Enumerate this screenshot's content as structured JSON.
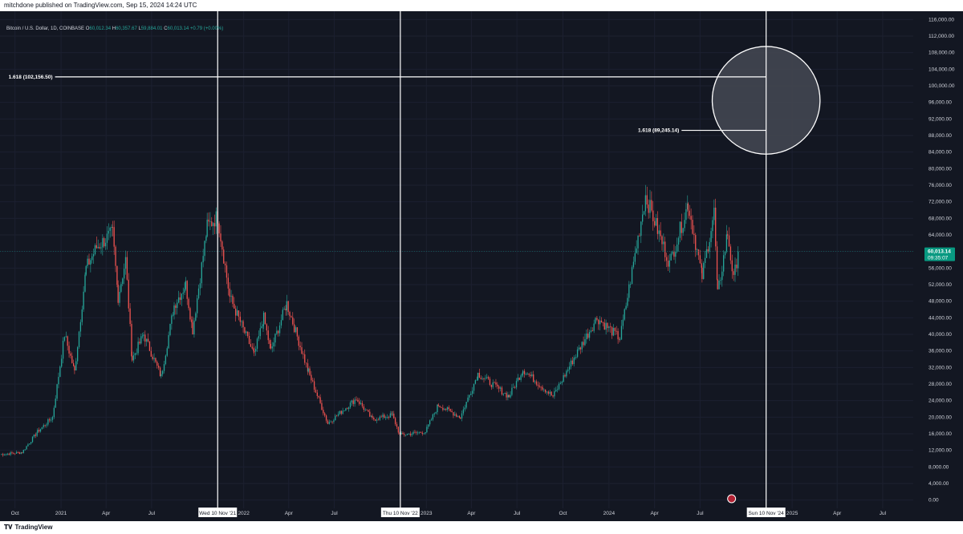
{
  "header": {
    "publisher": "mitchdone published on TradingView.com, Sep 15, 2024 14:24 UTC"
  },
  "legend": {
    "symbol": "Bitcoin / U.S. Dollar, 1D, COINBASE",
    "o_label": "O",
    "o_value": "60,012.34",
    "h_label": "H",
    "h_value": "60,357.67",
    "l_label": "L",
    "l_value": "59,884.01",
    "c_label": "C",
    "c_value": "60,013.14",
    "change": "+0.79 (+0.00%)"
  },
  "footer": {
    "logo": "TradingView"
  },
  "colors": {
    "background": "#131722",
    "up": "#26a69a",
    "down": "#ef5350",
    "line": "#ffffff",
    "circle_fill": "#434651",
    "price_tag": "#089981"
  },
  "chart_data": {
    "type": "candlestick",
    "ylim": [
      -2000,
      118000
    ],
    "y_ticks": [
      0,
      4000,
      8000,
      12000,
      16000,
      20000,
      24000,
      28000,
      32000,
      36000,
      40000,
      44000,
      48000,
      52000,
      56000,
      60000,
      64000,
      68000,
      72000,
      76000,
      80000,
      84000,
      88000,
      92000,
      96000,
      100000,
      104000,
      108000,
      112000,
      116000
    ],
    "y_tick_labels": [
      "0.00",
      "4,000.00",
      "8,000.00",
      "12,000.00",
      "16,000.00",
      "20,000.00",
      "24,000.00",
      "28,000.00",
      "32,000.00",
      "36,000.00",
      "40,000.00",
      "44,000.00",
      "48,000.00",
      "52,000.00",
      "56,000.00",
      "60,000.00",
      "64,000.00",
      "68,000.00",
      "72,000.00",
      "76,000.00",
      "80,000.00",
      "84,000.00",
      "88,000.00",
      "92,000.00",
      "96,000.00",
      "100,000.00",
      "104,000.00",
      "108,000.00",
      "112,000.00",
      "116,000.00"
    ],
    "xlim": [
      "2020-09-01",
      "2025-08-31"
    ],
    "x_ticks": [
      {
        "date": "2020-10-01",
        "label": "Oct"
      },
      {
        "date": "2021-01-01",
        "label": "2021"
      },
      {
        "date": "2021-04-01",
        "label": "Apr"
      },
      {
        "date": "2021-07-01",
        "label": "Jul"
      },
      {
        "date": "2022-01-01",
        "label": "2022"
      },
      {
        "date": "2022-04-01",
        "label": "Apr"
      },
      {
        "date": "2022-07-01",
        "label": "Jul"
      },
      {
        "date": "2023-01-01",
        "label": "2023"
      },
      {
        "date": "2023-04-01",
        "label": "Apr"
      },
      {
        "date": "2023-07-01",
        "label": "Jul"
      },
      {
        "date": "2023-10-01",
        "label": "Oct"
      },
      {
        "date": "2024-01-01",
        "label": "2024"
      },
      {
        "date": "2024-04-01",
        "label": "Apr"
      },
      {
        "date": "2024-07-01",
        "label": "Jul"
      },
      {
        "date": "2025-01-01",
        "label": "2025"
      },
      {
        "date": "2025-04-01",
        "label": "Apr"
      },
      {
        "date": "2025-07-01",
        "label": "Jul"
      }
    ],
    "series": [
      {
        "values": [
          {
            "date": "2020-09-01",
            "price": 11000
          },
          {
            "date": "2020-10-15",
            "price": 11500
          },
          {
            "date": "2020-11-15",
            "price": 16500
          },
          {
            "date": "2020-12-15",
            "price": 20000
          },
          {
            "date": "2021-01-08",
            "price": 40000
          },
          {
            "date": "2021-01-28",
            "price": 31000
          },
          {
            "date": "2021-02-20",
            "price": 56000
          },
          {
            "date": "2021-03-13",
            "price": 61000
          },
          {
            "date": "2021-04-14",
            "price": 64500
          },
          {
            "date": "2021-04-25",
            "price": 49000
          },
          {
            "date": "2021-05-10",
            "price": 58000
          },
          {
            "date": "2021-05-23",
            "price": 34000
          },
          {
            "date": "2021-06-15",
            "price": 40000
          },
          {
            "date": "2021-07-20",
            "price": 29800
          },
          {
            "date": "2021-08-15",
            "price": 47000
          },
          {
            "date": "2021-09-07",
            "price": 52000
          },
          {
            "date": "2021-09-21",
            "price": 41000
          },
          {
            "date": "2021-10-20",
            "price": 66000
          },
          {
            "date": "2021-11-10",
            "price": 68500
          },
          {
            "date": "2021-12-04",
            "price": 49000
          },
          {
            "date": "2022-01-22",
            "price": 35000
          },
          {
            "date": "2022-02-10",
            "price": 44000
          },
          {
            "date": "2022-02-24",
            "price": 36000
          },
          {
            "date": "2022-03-28",
            "price": 47500
          },
          {
            "date": "2022-05-10",
            "price": 31000
          },
          {
            "date": "2022-06-18",
            "price": 18500
          },
          {
            "date": "2022-08-14",
            "price": 24500
          },
          {
            "date": "2022-09-15",
            "price": 19500
          },
          {
            "date": "2022-10-25",
            "price": 20500
          },
          {
            "date": "2022-11-09",
            "price": 15700
          },
          {
            "date": "2022-12-30",
            "price": 16500
          },
          {
            "date": "2023-01-25",
            "price": 23000
          },
          {
            "date": "2023-03-10",
            "price": 20000
          },
          {
            "date": "2023-04-14",
            "price": 30500
          },
          {
            "date": "2023-06-15",
            "price": 25000
          },
          {
            "date": "2023-07-13",
            "price": 31500
          },
          {
            "date": "2023-09-11",
            "price": 25000
          },
          {
            "date": "2023-10-24",
            "price": 34500
          },
          {
            "date": "2023-12-08",
            "price": 44000
          },
          {
            "date": "2024-01-23",
            "price": 39000
          },
          {
            "date": "2024-03-14",
            "price": 73500
          },
          {
            "date": "2024-05-01",
            "price": 57000
          },
          {
            "date": "2024-06-07",
            "price": 71500
          },
          {
            "date": "2024-07-05",
            "price": 54000
          },
          {
            "date": "2024-07-29",
            "price": 69500
          },
          {
            "date": "2024-08-05",
            "price": 49500
          },
          {
            "date": "2024-08-25",
            "price": 64500
          },
          {
            "date": "2024-09-06",
            "price": 53000
          },
          {
            "date": "2024-09-15",
            "price": 60013
          }
        ]
      }
    ],
    "last_price": {
      "value": 60013.14,
      "label": "60,013.14",
      "countdown": "09:35:07"
    },
    "vertical_lines": [
      {
        "date": "2021-11-10",
        "label": "Wed 10 Nov '21"
      },
      {
        "date": "2022-11-10",
        "label": "Thu 10 Nov '22"
      },
      {
        "date": "2024-11-10",
        "label": "Sun 10 Nov '24"
      }
    ],
    "fib_levels": [
      {
        "value": 102156.5,
        "label": "1.618 (102,156.50)",
        "from": "2020-12-20",
        "to": "2024-11-10"
      },
      {
        "value": 89245.14,
        "label": "1.618 (89,245.14)",
        "from": "2024-05-25",
        "to": "2024-11-10"
      }
    ],
    "highlight_circle": {
      "date": "2024-11-10",
      "price": 96500,
      "radius_price": 13000
    }
  }
}
